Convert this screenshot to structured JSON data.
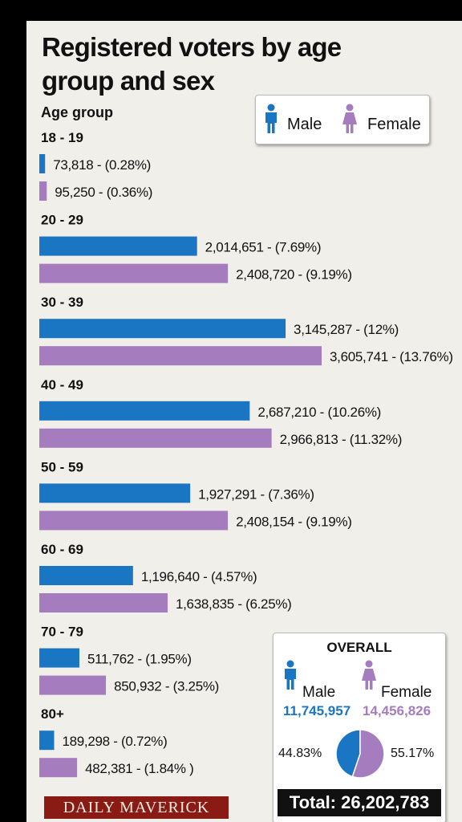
{
  "title": "Registered voters by age group and sex",
  "legend": {
    "male": "Male",
    "female": "Female"
  },
  "colors": {
    "male": "#1a75c2",
    "female": "#a57dbe",
    "background": "#f1efea"
  },
  "chart_data": {
    "type": "bar",
    "orientation": "horizontal",
    "category_axis_label": "Age group",
    "categories": [
      "18 - 19",
      "20 - 29",
      "30 - 39",
      "40 - 49",
      "50 - 59",
      "60 - 69",
      "70 - 79",
      "80+"
    ],
    "series": [
      {
        "name": "Male",
        "values": [
          73818,
          2014651,
          3145287,
          2687210,
          1927291,
          1196640,
          511762,
          189298
        ],
        "labels": [
          "73,818 - (0.28%)",
          "2,014,651 - (7.69%)",
          "3,145,287 - (12%)",
          "2,687,210 - (10.26%)",
          "1,927,291 - (7.36%)",
          "1,196,640 - (4.57%)",
          "511,762 - (1.95%)",
          "189,298 - (0.72%)"
        ]
      },
      {
        "name": "Female",
        "values": [
          95250,
          2408720,
          3605741,
          2966813,
          2408154,
          1638835,
          850932,
          482381
        ],
        "labels": [
          "95,250 - (0.36%)",
          "2,408,720 - (9.19%)",
          "3,605,741 - (13.76%)",
          "2,966,813 - (11.32%)",
          "2,408,154 - (9.19%)",
          "1,638,835 - (6.25%)",
          "850,932 - (3.25%)",
          "482,381 - (1.84%  )"
        ]
      }
    ],
    "legend_position": "top-right",
    "grid": false
  },
  "overall": {
    "title": "OVERALL",
    "male_label": "Male",
    "female_label": "Female",
    "male_total": "11,745,957",
    "female_total": "14,456,826",
    "pie": {
      "type": "pie",
      "values": [
        44.83,
        55.17
      ],
      "labels": [
        "44.83%",
        "55.17%"
      ],
      "series_names": [
        "Male",
        "Female"
      ]
    },
    "total_text": "Total: 26,202,783"
  },
  "brand": "DAILY MAVERICK"
}
